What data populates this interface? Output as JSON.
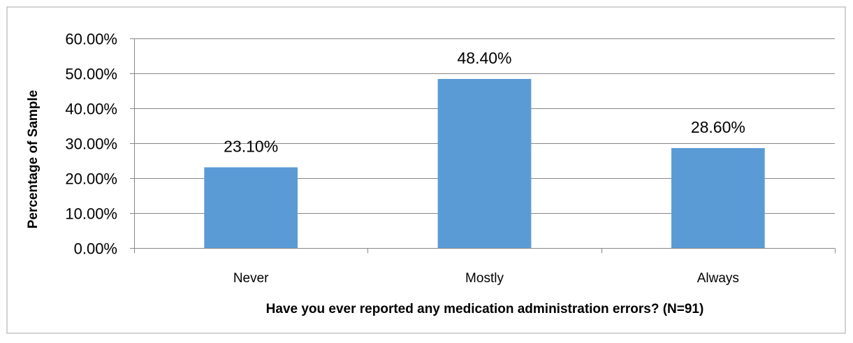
{
  "chart_data": {
    "type": "bar",
    "categories": [
      "Never",
      "Mostly",
      "Always"
    ],
    "values": [
      23.1,
      48.4,
      28.6
    ],
    "data_labels": [
      "23.10%",
      "48.40%",
      "28.60%"
    ],
    "xlabel": "Have you ever reported any medication administration errors? (N=91)",
    "ylabel": "Percentage of Sample",
    "ylim": [
      0,
      60
    ],
    "yticks": [
      0,
      10,
      20,
      30,
      40,
      50,
      60
    ],
    "ytick_labels": [
      "0.00%",
      "10.00%",
      "20.00%",
      "30.00%",
      "40.00%",
      "50.00%",
      "60.00%"
    ],
    "grid": true,
    "legend": "none",
    "colors": {
      "bar": "#5b9bd5",
      "grid": "#878787",
      "border": "#a6a6a6"
    }
  }
}
